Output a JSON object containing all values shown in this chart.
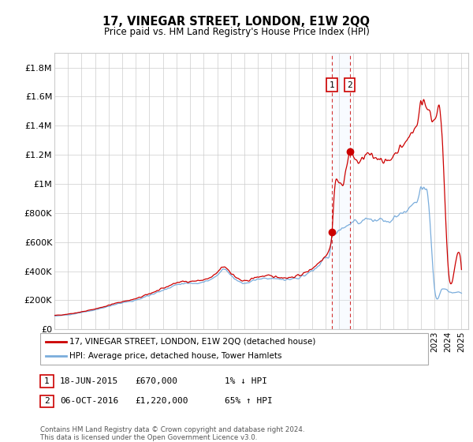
{
  "title": "17, VINEGAR STREET, LONDON, E1W 2QQ",
  "subtitle": "Price paid vs. HM Land Registry's House Price Index (HPI)",
  "ylabel_ticks": [
    "£0",
    "£200K",
    "£400K",
    "£600K",
    "£800K",
    "£1M",
    "£1.2M",
    "£1.4M",
    "£1.6M",
    "£1.8M"
  ],
  "ytick_values": [
    0,
    200000,
    400000,
    600000,
    800000,
    1000000,
    1200000,
    1400000,
    1600000,
    1800000
  ],
  "ylim": [
    0,
    1900000
  ],
  "xmin": 1995.0,
  "xmax": 2025.5,
  "sale1_x": 2015.46,
  "sale1_y": 670000,
  "sale1_label": "1",
  "sale2_x": 2016.76,
  "sale2_y": 1220000,
  "sale2_label": "2",
  "legend_line1": "17, VINEGAR STREET, LONDON, E1W 2QQ (detached house)",
  "legend_line2": "HPI: Average price, detached house, Tower Hamlets",
  "ann1_num": "1",
  "ann1_date": "18-JUN-2015",
  "ann1_price": "£670,000",
  "ann1_hpi": "1% ↓ HPI",
  "ann2_num": "2",
  "ann2_date": "06-OCT-2016",
  "ann2_price": "£1,220,000",
  "ann2_hpi": "65% ↑ HPI",
  "footer1": "Contains HM Land Registry data © Crown copyright and database right 2024.",
  "footer2": "This data is licensed under the Open Government Licence v3.0.",
  "red_color": "#cc0000",
  "blue_color": "#7aaddc",
  "shade_color": "#ddeeff",
  "grid_color": "#cccccc",
  "background_color": "#ffffff"
}
